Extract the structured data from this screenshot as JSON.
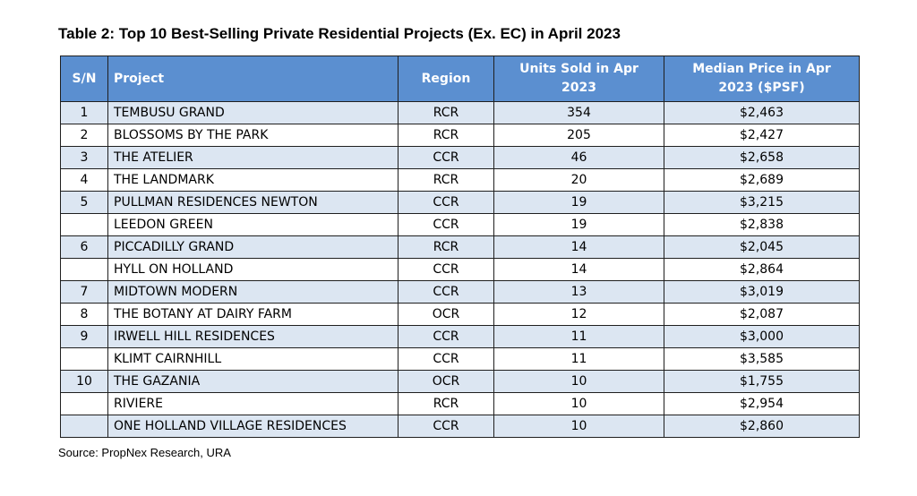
{
  "title": "Table 2: Top 10 Best-Selling Private Residential Projects (Ex. EC) in April 2023",
  "headers": {
    "sn": "S/N",
    "project": "Project",
    "region": "Region",
    "units_line1": "Units Sold in Apr",
    "units_line2": "2023",
    "price_line1": "Median Price in Apr",
    "price_line2": "2023 ($PSF)"
  },
  "rows": [
    {
      "sn": "1",
      "project": "TEMBUSU GRAND",
      "region": "RCR",
      "units": "354",
      "price": "$2,463"
    },
    {
      "sn": "2",
      "project": "BLOSSOMS BY THE PARK",
      "region": "RCR",
      "units": "205",
      "price": "$2,427"
    },
    {
      "sn": "3",
      "project": "THE ATELIER",
      "region": "CCR",
      "units": "46",
      "price": "$2,658"
    },
    {
      "sn": "4",
      "project": "THE LANDMARK",
      "region": "RCR",
      "units": "20",
      "price": "$2,689"
    },
    {
      "sn": "5",
      "project": "PULLMAN RESIDENCES NEWTON",
      "region": "CCR",
      "units": "19",
      "price": "$3,215"
    },
    {
      "sn": "",
      "project": "LEEDON GREEN",
      "region": "CCR",
      "units": "19",
      "price": "$2,838"
    },
    {
      "sn": "6",
      "project": "PICCADILLY GRAND",
      "region": "RCR",
      "units": "14",
      "price": "$2,045"
    },
    {
      "sn": "",
      "project": "HYLL ON HOLLAND",
      "region": "CCR",
      "units": "14",
      "price": "$2,864"
    },
    {
      "sn": "7",
      "project": "MIDTOWN MODERN",
      "region": "CCR",
      "units": "13",
      "price": "$3,019"
    },
    {
      "sn": "8",
      "project": "THE BOTANY AT DAIRY FARM",
      "region": "OCR",
      "units": "12",
      "price": "$2,087"
    },
    {
      "sn": "9",
      "project": "IRWELL HILL RESIDENCES",
      "region": "CCR",
      "units": "11",
      "price": "$3,000"
    },
    {
      "sn": "",
      "project": "KLIMT CAIRNHILL",
      "region": "CCR",
      "units": "11",
      "price": "$3,585"
    },
    {
      "sn": "10",
      "project": "THE GAZANIA",
      "region": "OCR",
      "units": "10",
      "price": "$1,755"
    },
    {
      "sn": "",
      "project": "RIVIERE",
      "region": "RCR",
      "units": "10",
      "price": "$2,954"
    },
    {
      "sn": "",
      "project": "ONE HOLLAND VILLAGE RESIDENCES",
      "region": "CCR",
      "units": "10",
      "price": "$2,860"
    }
  ],
  "source": "Source: PropNex Research, URA",
  "colors": {
    "header_bg": "#5b8fd0",
    "header_text": "#ffffff",
    "alt_row_bg": "#dce6f2",
    "border": "#1f1f1f"
  }
}
